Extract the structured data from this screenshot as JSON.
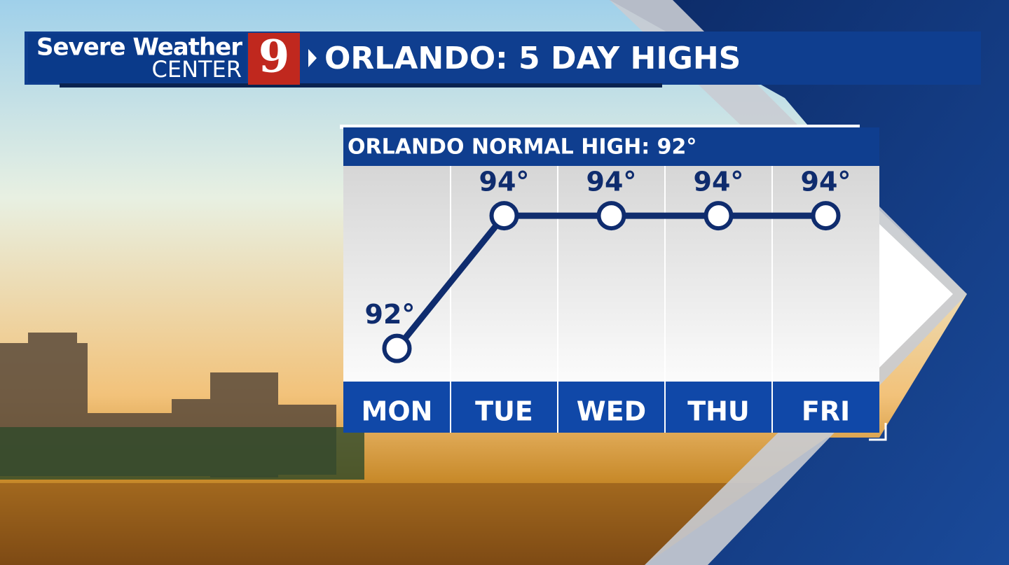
{
  "brand": {
    "line1": "Severe Weather",
    "line2": "CENTER",
    "channel": "9"
  },
  "header": {
    "title": "ORLANDO: 5 DAY HIGHS"
  },
  "chart_data": {
    "type": "line",
    "title": "ORLANDO NORMAL HIGH: 92°",
    "categories": [
      "MON",
      "TUE",
      "WED",
      "THU",
      "FRI"
    ],
    "values": [
      92,
      94,
      94,
      94,
      94
    ],
    "value_labels": [
      "92°",
      "94°",
      "94°",
      "94°",
      "94°"
    ],
    "color": "#0f2c6e",
    "ylim": [
      91.5,
      94.75
    ]
  }
}
